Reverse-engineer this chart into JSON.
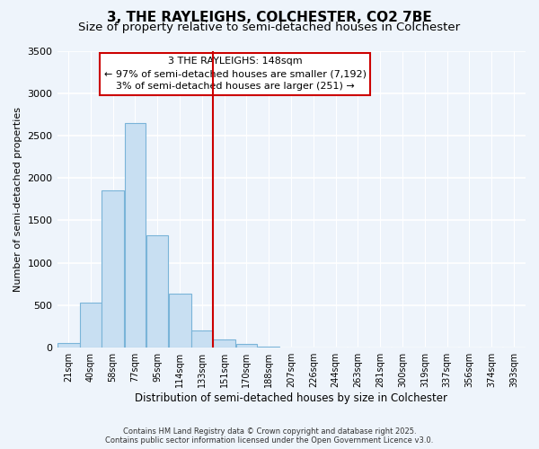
{
  "title": "3, THE RAYLEIGHS, COLCHESTER, CO2 7BE",
  "subtitle": "Size of property relative to semi-detached houses in Colchester",
  "xlabel": "Distribution of semi-detached houses by size in Colchester",
  "ylabel": "Number of semi-detached properties",
  "bin_labels": [
    "21sqm",
    "40sqm",
    "58sqm",
    "77sqm",
    "95sqm",
    "114sqm",
    "133sqm",
    "151sqm",
    "170sqm",
    "188sqm",
    "207sqm",
    "226sqm",
    "244sqm",
    "263sqm",
    "281sqm",
    "300sqm",
    "319sqm",
    "337sqm",
    "356sqm",
    "374sqm",
    "393sqm"
  ],
  "bar_values": [
    60,
    530,
    1850,
    2650,
    1320,
    640,
    200,
    100,
    40,
    10,
    5,
    0,
    0,
    0,
    0,
    0,
    0,
    0,
    0,
    0,
    0
  ],
  "bar_left_edges": [
    21,
    40,
    58,
    77,
    95,
    114,
    133,
    151,
    170,
    188,
    207,
    226,
    244,
    263,
    281,
    300,
    319,
    337,
    356,
    374,
    393
  ],
  "bar_widths": [
    19,
    18,
    19,
    18,
    19,
    19,
    18,
    19,
    18,
    19,
    19,
    18,
    19,
    18,
    19,
    19,
    18,
    19,
    18,
    19,
    19
  ],
  "bar_color": "#c8dff2",
  "bar_edge_color": "#7ab4d8",
  "vline_x": 151,
  "vline_color": "#cc0000",
  "ylim": [
    0,
    3500
  ],
  "yticks": [
    0,
    500,
    1000,
    1500,
    2000,
    2500,
    3000,
    3500
  ],
  "annotation_title": "3 THE RAYLEIGHS: 148sqm",
  "annotation_line1": "← 97% of semi-detached houses are smaller (7,192)",
  "annotation_line2": "3% of semi-detached houses are larger (251) →",
  "footer_line1": "Contains HM Land Registry data © Crown copyright and database right 2025.",
  "footer_line2": "Contains public sector information licensed under the Open Government Licence v3.0.",
  "background_color": "#eef4fb",
  "grid_color": "#ffffff",
  "title_fontsize": 11,
  "subtitle_fontsize": 9.5
}
